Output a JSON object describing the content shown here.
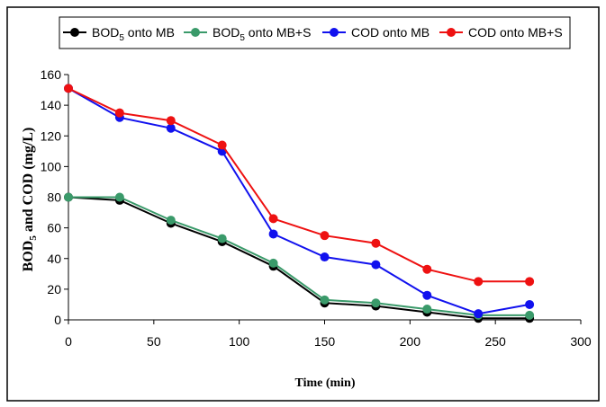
{
  "chart_data": {
    "type": "line",
    "xlabel": "Time (min)",
    "ylabel_parts": [
      "BOD",
      "5",
      " and COD (mg/L)"
    ],
    "xlim": [
      0,
      300
    ],
    "ylim": [
      0,
      160
    ],
    "xticks": [
      0,
      50,
      100,
      150,
      200,
      250,
      300
    ],
    "yticks": [
      0,
      20,
      40,
      60,
      80,
      100,
      120,
      140,
      160
    ],
    "grid": false,
    "legend_position": "top",
    "x": [
      0,
      30,
      60,
      90,
      120,
      150,
      180,
      210,
      240,
      270
    ],
    "series": [
      {
        "name_parts": [
          "BOD",
          "5",
          " onto MB"
        ],
        "color": "#000000",
        "values": [
          80,
          78,
          63,
          51,
          35,
          11,
          9,
          5,
          1,
          1
        ]
      },
      {
        "name_parts": [
          "BOD",
          "5",
          " onto MB+S"
        ],
        "color": "#3a9a6a",
        "values": [
          80,
          80,
          65,
          53,
          37,
          13,
          11,
          7,
          3,
          3
        ]
      },
      {
        "name_parts": [
          "COD onto MB",
          "",
          ""
        ],
        "color": "#1111ee",
        "values": [
          151,
          132,
          125,
          110,
          56,
          41,
          36,
          16,
          4,
          10
        ]
      },
      {
        "name_parts": [
          "COD onto MB+S",
          "",
          ""
        ],
        "color": "#ee1111",
        "values": [
          151,
          135,
          130,
          114,
          66,
          55,
          50,
          33,
          25,
          25
        ]
      }
    ]
  }
}
